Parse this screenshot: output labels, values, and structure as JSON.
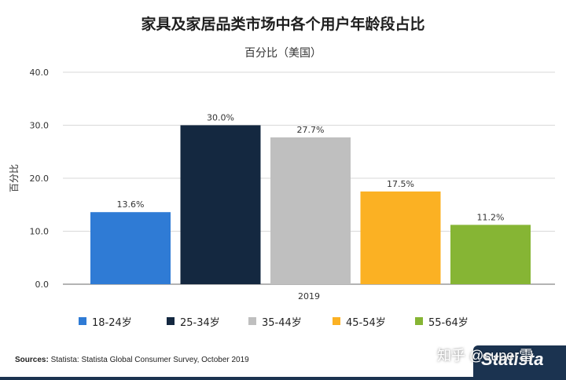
{
  "title": "家具及家居品类市场中各个用户年龄段占比",
  "subtitle": "百分比（美国）",
  "source": {
    "label": "Sources:",
    "text": " Statista: Statista Global Consumer Survey, October 2019"
  },
  "watermark": "知乎 @super雷",
  "logo": "Statista",
  "colors": {
    "footer": "#1b3350",
    "axis": "#888888",
    "grid": "#d9d9d9"
  },
  "chart_data": {
    "type": "bar",
    "title": "家具及家居品类市场中各个用户年龄段占比",
    "subtitle": "百分比（美国）",
    "xlabel": "2019",
    "ylabel": "百分比",
    "ylim": [
      0,
      40
    ],
    "yticks": [
      "0.0",
      "10.0",
      "20.0",
      "30.0",
      "40.0"
    ],
    "grid": true,
    "legend_position": "bottom",
    "categories": [
      "2019"
    ],
    "series": [
      {
        "name": "18-24岁",
        "values": [
          13.6
        ],
        "label": "13.6%",
        "color": "#2f7bd5"
      },
      {
        "name": "25-34岁",
        "values": [
          30.0
        ],
        "label": "30.0%",
        "color": "#142840"
      },
      {
        "name": "35-44岁",
        "values": [
          27.7
        ],
        "label": "27.7%",
        "color": "#bfbfbf"
      },
      {
        "name": "45-54岁",
        "values": [
          17.5
        ],
        "label": "17.5%",
        "color": "#fbb123"
      },
      {
        "name": "55-64岁",
        "values": [
          11.2
        ],
        "label": "11.2%",
        "color": "#86b534"
      }
    ]
  }
}
